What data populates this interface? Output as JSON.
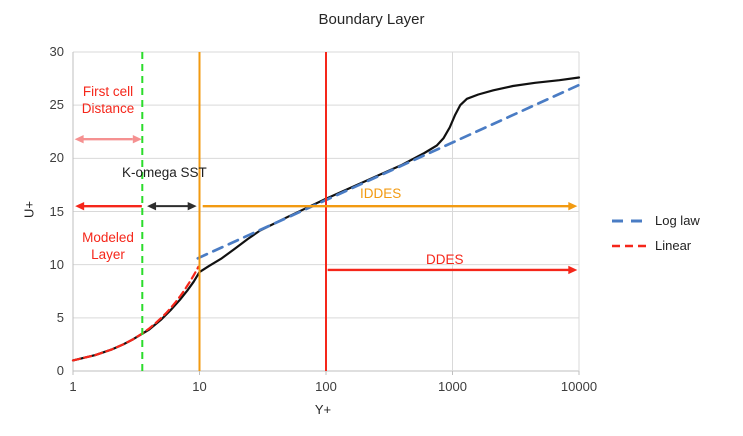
{
  "labels": {
    "title": "Boundary Layer",
    "x_axis": "Y+",
    "y_axis": "U+",
    "first_cell": "First cell\nDistance",
    "komega": "K-omega SST",
    "modeled": "Modeled\nLayer",
    "iddes": "IDDES",
    "ddes": "DDES"
  },
  "legend": [
    {
      "label": "Log law",
      "color": "#4a7cc4",
      "dash": "11,8",
      "stroke_width": 3
    },
    {
      "label": "Linear",
      "color": "#f5261a",
      "dash": "8,5",
      "stroke_width": 2.5
    }
  ],
  "colors": {
    "curve": "#111111",
    "log_law": "#4a7cc4",
    "linear": "#f5261a",
    "red": "#f5261a",
    "orange": "#f29a11",
    "green": "#2bdc2b",
    "pink": "#f59191",
    "arrow_dark": "#2e2e2e",
    "grid": "#d9d9d9",
    "axis": "#bfbfbf",
    "tick_text": "#3d3d3d"
  },
  "chart_data": {
    "type": "line",
    "title": "Boundary Layer",
    "xlabel": "Y+",
    "ylabel": "U+",
    "x_scale": "log",
    "xlim": [
      1,
      10000
    ],
    "ylim": [
      0,
      30
    ],
    "x_ticks": [
      1,
      10,
      100,
      1000,
      10000
    ],
    "y_ticks": [
      0,
      5,
      10,
      15,
      20,
      25,
      30
    ],
    "grid": true,
    "legend_position": "right",
    "series": [
      {
        "name": "Boundary layer profile",
        "color": "#111111",
        "dash": null,
        "width": 2.2,
        "x": [
          1,
          1.5,
          2,
          2.5,
          3,
          4,
          5,
          6,
          7,
          8,
          9,
          10,
          12,
          15,
          19,
          24,
          30,
          50,
          100,
          200,
          400,
          600,
          750,
          850,
          950,
          1050,
          1150,
          1300,
          1600,
          2100,
          3000,
          4500,
          7000,
          10000
        ],
        "y": [
          1,
          1.5,
          2,
          2.5,
          3,
          3.9,
          4.85,
          5.8,
          6.7,
          7.55,
          8.4,
          9.3,
          9.9,
          10.6,
          11.5,
          12.4,
          13.2,
          14.5,
          16.2,
          17.8,
          19.4,
          20.5,
          21.2,
          21.9,
          22.9,
          24.1,
          25.0,
          25.6,
          26.0,
          26.4,
          26.8,
          27.1,
          27.35,
          27.6
        ]
      },
      {
        "name": "Log law",
        "color": "#4a7cc4",
        "dash": "10,7",
        "width": 2.7,
        "x": [
          9.7,
          10000
        ],
        "y": [
          10.6,
          26.9
        ]
      },
      {
        "name": "Linear",
        "color": "#f5261a",
        "dash": "7,4.5",
        "width": 2.2,
        "x": [
          1,
          1.5,
          2,
          2.5,
          3,
          3.5,
          4,
          4.5,
          5,
          5.5,
          6,
          6.5,
          7,
          7.5,
          8,
          8.5,
          9,
          9.5,
          9.8
        ],
        "y": [
          1,
          1.5,
          2,
          2.5,
          3,
          3.5,
          4,
          4.5,
          5,
          5.5,
          6,
          6.5,
          7,
          7.5,
          8,
          8.5,
          9,
          9.5,
          9.8
        ]
      }
    ],
    "vertical_lines": [
      {
        "name": "first-cell-line",
        "v": 3.53,
        "color": "#2bdc2b",
        "dash": "7,5",
        "width": 2
      },
      {
        "name": "iddes-interface-line",
        "v": 10,
        "color": "#f29a11",
        "dash": null,
        "width": 2
      },
      {
        "name": "ddes-interface-line",
        "v": 100,
        "color": "#f5261a",
        "dash": null,
        "width": 2
      }
    ],
    "arrows": [
      {
        "name": "first-cell-extent-arrow",
        "v1": 3.5,
        "v2": 1.03,
        "u": 21.8,
        "color": "#f59191",
        "heads": "both",
        "width": 2.4
      },
      {
        "name": "modeled-layer-extent-arrow",
        "v1": 3.5,
        "v2": 1.04,
        "u": 15.5,
        "color": "#f5261a",
        "heads": "end",
        "width": 2.4
      },
      {
        "name": "komega-sst-extent-arrow",
        "v1": 3.85,
        "v2": 9.5,
        "u": 15.5,
        "color": "#2e2e2e",
        "heads": "both",
        "width": 2
      },
      {
        "name": "iddes-extent-arrow",
        "v1": 10.6,
        "v2": 9700,
        "u": 15.5,
        "color": "#f29a11",
        "heads": "end",
        "width": 2.4
      },
      {
        "name": "ddes-extent-arrow",
        "v1": 103,
        "v2": 9700,
        "u": 9.5,
        "color": "#f5261a",
        "heads": "end",
        "width": 2.4
      }
    ]
  }
}
